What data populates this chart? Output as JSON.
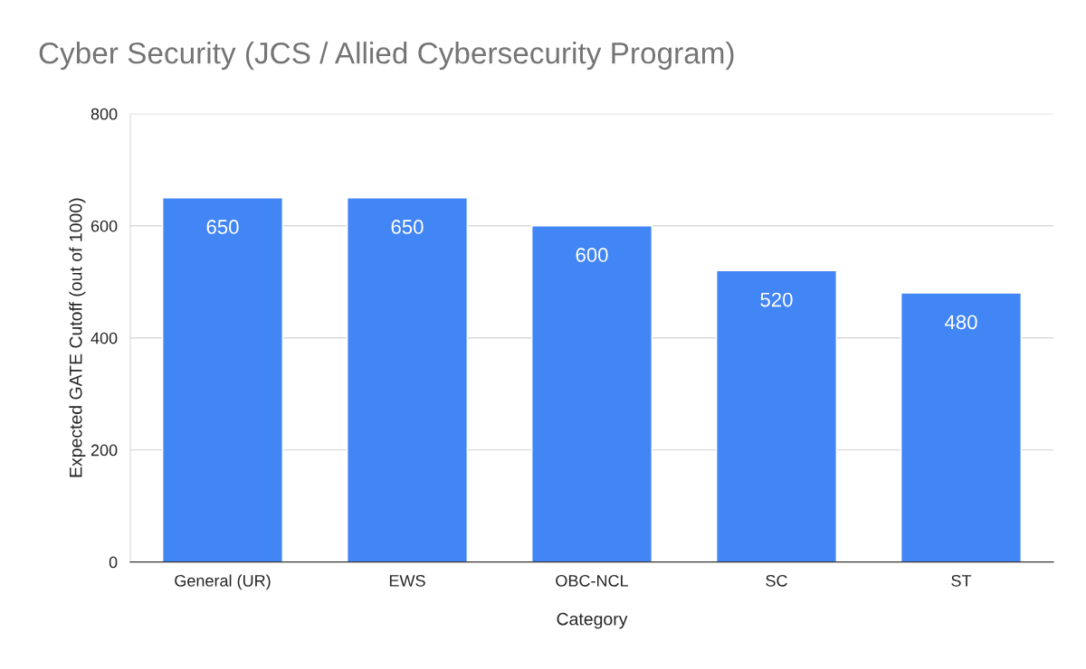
{
  "chart_data": {
    "type": "bar",
    "title": "Cyber Security (JCS / Allied Cybersecurity Program)",
    "xlabel": "Category",
    "ylabel": "Expected GATE Cutoff (out of 1000)",
    "categories": [
      "General (UR)",
      "EWS",
      "OBC-NCL",
      "SC",
      "ST"
    ],
    "values": [
      650,
      650,
      600,
      520,
      480
    ],
    "color": "#4285f4",
    "ylim": [
      0,
      800
    ],
    "yticks": [
      0,
      200,
      400,
      600,
      800
    ],
    "grid": "y",
    "data_labels": true
  }
}
